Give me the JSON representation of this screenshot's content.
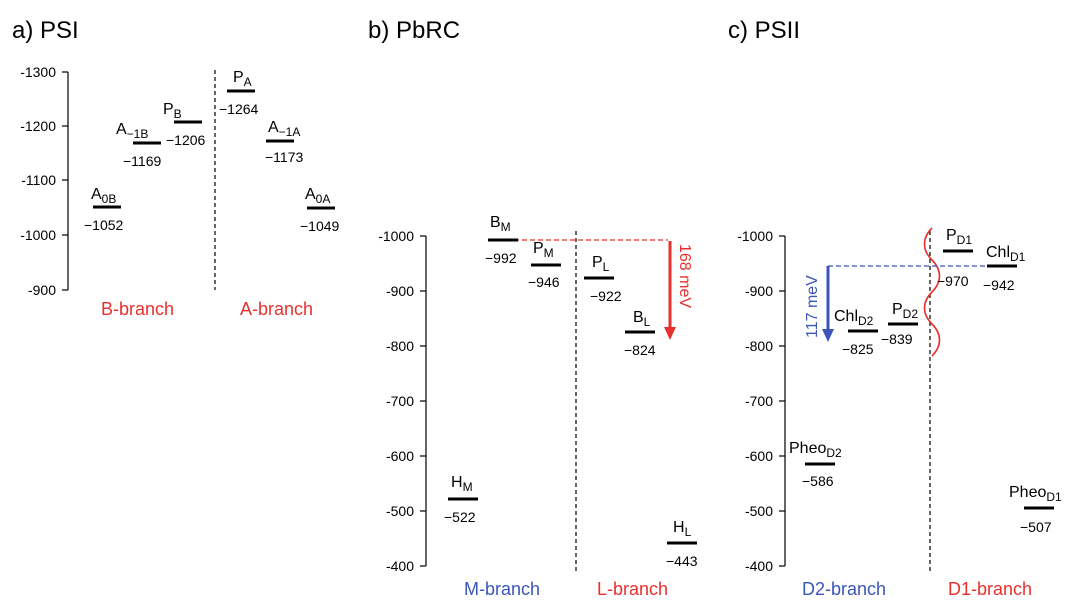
{
  "colors": {
    "red": "#e8312f",
    "blue": "#3b55b8"
  },
  "panels": [
    {
      "id": "psi",
      "title": "a)  PSI",
      "ticks": [
        "-1300",
        "-1200",
        "-1100",
        "-1000",
        "-900"
      ],
      "left_branch": "B-branch",
      "right_branch": "A-branch",
      "levels": [
        {
          "base": "A",
          "sub": "0B",
          "value": "−1052"
        },
        {
          "base": "A",
          "sub": "−1B",
          "value": "−1169"
        },
        {
          "base": "P",
          "sub": "B",
          "value": "−1206"
        },
        {
          "base": "P",
          "sub": "A",
          "value": "−1264"
        },
        {
          "base": "A",
          "sub": "−1A",
          "value": "−1173"
        },
        {
          "base": "A",
          "sub": "0A",
          "value": "−1049"
        }
      ]
    },
    {
      "id": "pbrc",
      "title": "b)  PbRC",
      "ticks": [
        "-1000",
        "-900",
        "-800",
        "-700",
        "-600",
        "-500",
        "-400"
      ],
      "left_branch": "M-branch",
      "right_branch": "L-branch",
      "levels": [
        {
          "base": "B",
          "sub": "M",
          "value": "−992"
        },
        {
          "base": "P",
          "sub": "M",
          "value": "−946"
        },
        {
          "base": "P",
          "sub": "L",
          "value": "−922"
        },
        {
          "base": "B",
          "sub": "L",
          "value": "−824"
        },
        {
          "base": "H",
          "sub": "M",
          "value": "−522"
        },
        {
          "base": "H",
          "sub": "L",
          "value": "−443"
        }
      ],
      "arrow_label": "168 meV"
    },
    {
      "id": "psii",
      "title": "c)  PSII",
      "ticks": [
        "-1000",
        "-900",
        "-800",
        "-700",
        "-600",
        "-500",
        "-400"
      ],
      "left_branch": "D2-branch",
      "right_branch": "D1-branch",
      "levels": [
        {
          "base": "P",
          "sub": "D1",
          "value": "−970"
        },
        {
          "base": "Chl",
          "sub": "D1",
          "value": "−942"
        },
        {
          "base": "Chl",
          "sub": "D2",
          "value": "−825"
        },
        {
          "base": "P",
          "sub": "D2",
          "value": "−839"
        },
        {
          "base": "Pheo",
          "sub": "D2",
          "value": "−586"
        },
        {
          "base": "Pheo",
          "sub": "D1",
          "value": "−507"
        }
      ],
      "arrow_label": "117 meV"
    }
  ]
}
